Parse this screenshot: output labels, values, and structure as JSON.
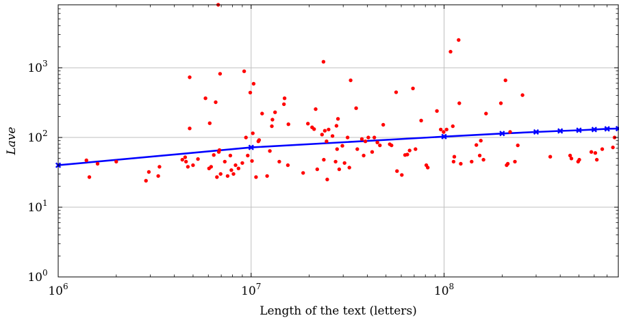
{
  "chart_data": {
    "type": "scatter",
    "xlabel": "Length of the text (letters)",
    "ylabel": "Lave",
    "x_scale": "log",
    "y_scale": "log",
    "xlim": [
      1000000,
      800000000
    ],
    "ylim": [
      1,
      8000
    ],
    "grid": "major",
    "x_ticks": [
      {
        "value": 1000000,
        "base": "10",
        "exp": "6"
      },
      {
        "value": 10000000,
        "base": "10",
        "exp": "7"
      },
      {
        "value": 100000000,
        "base": "10",
        "exp": "8"
      }
    ],
    "y_ticks": [
      {
        "value": 1,
        "base": "10",
        "exp": "0"
      },
      {
        "value": 10,
        "base": "10",
        "exp": "1"
      },
      {
        "value": 100,
        "base": "10",
        "exp": "2"
      },
      {
        "value": 1000,
        "base": "10",
        "exp": "3"
      }
    ],
    "colors": {
      "scatter": "#ff0000",
      "line": "#0000ff"
    },
    "scatter": [
      [
        1400000,
        47
      ],
      [
        1450000,
        27
      ],
      [
        1600000,
        42
      ],
      [
        2000000,
        45
      ],
      [
        2850000,
        24
      ],
      [
        2950000,
        32
      ],
      [
        3300000,
        28
      ],
      [
        3350000,
        38
      ],
      [
        4400000,
        48
      ],
      [
        4550000,
        52
      ],
      [
        4600000,
        45
      ],
      [
        4700000,
        38
      ],
      [
        4800000,
        730
      ],
      [
        4800000,
        135
      ],
      [
        5000000,
        40
      ],
      [
        5300000,
        49
      ],
      [
        5800000,
        365
      ],
      [
        6050000,
        36
      ],
      [
        6100000,
        160
      ],
      [
        6200000,
        38
      ],
      [
        6400000,
        56
      ],
      [
        6550000,
        320
      ],
      [
        6650000,
        27
      ],
      [
        6750000,
        8200
      ],
      [
        6800000,
        62
      ],
      [
        6850000,
        66
      ],
      [
        6900000,
        820
      ],
      [
        6950000,
        30
      ],
      [
        7300000,
        45
      ],
      [
        7550000,
        28
      ],
      [
        7800000,
        55
      ],
      [
        7900000,
        34
      ],
      [
        8100000,
        30
      ],
      [
        8300000,
        40
      ],
      [
        8600000,
        36
      ],
      [
        9000000,
        43
      ],
      [
        9200000,
        890
      ],
      [
        9400000,
        100
      ],
      [
        9600000,
        55
      ],
      [
        9900000,
        440
      ],
      [
        10100000,
        46
      ],
      [
        10200000,
        115
      ],
      [
        10300000,
        590
      ],
      [
        10600000,
        27
      ],
      [
        10900000,
        88
      ],
      [
        11000000,
        92
      ],
      [
        11400000,
        220
      ],
      [
        12100000,
        28
      ],
      [
        12500000,
        64
      ],
      [
        12800000,
        145
      ],
      [
        12900000,
        180
      ],
      [
        13300000,
        230
      ],
      [
        14000000,
        45
      ],
      [
        14800000,
        300
      ],
      [
        14900000,
        365
      ],
      [
        15500000,
        40
      ],
      [
        15600000,
        155
      ],
      [
        18600000,
        31
      ],
      [
        19700000,
        158
      ],
      [
        20700000,
        140
      ],
      [
        21200000,
        132
      ],
      [
        21600000,
        255
      ],
      [
        22000000,
        35
      ],
      [
        23300000,
        110
      ],
      [
        23700000,
        1220
      ],
      [
        23800000,
        48
      ],
      [
        24100000,
        125
      ],
      [
        24600000,
        88
      ],
      [
        24800000,
        25
      ],
      [
        25200000,
        130
      ],
      [
        26400000,
        105
      ],
      [
        27400000,
        45
      ],
      [
        27700000,
        147
      ],
      [
        27900000,
        68
      ],
      [
        28200000,
        185
      ],
      [
        28600000,
        35
      ],
      [
        29700000,
        76
      ],
      [
        30500000,
        43
      ],
      [
        31600000,
        100
      ],
      [
        32300000,
        37
      ],
      [
        32800000,
        660
      ],
      [
        35000000,
        263
      ],
      [
        35500000,
        68
      ],
      [
        37500000,
        95
      ],
      [
        38300000,
        55
      ],
      [
        39100000,
        88
      ],
      [
        40500000,
        100
      ],
      [
        42400000,
        62
      ],
      [
        43500000,
        100
      ],
      [
        45100000,
        85
      ],
      [
        46500000,
        77
      ],
      [
        48400000,
        152
      ],
      [
        52300000,
        80
      ],
      [
        53400000,
        77
      ],
      [
        56400000,
        445
      ],
      [
        57000000,
        33
      ],
      [
        60400000,
        29
      ],
      [
        62800000,
        56
      ],
      [
        64500000,
        57
      ],
      [
        66300000,
        65
      ],
      [
        69000000,
        505
      ],
      [
        71100000,
        68
      ],
      [
        76100000,
        175
      ],
      [
        80900000,
        40
      ],
      [
        82300000,
        37
      ],
      [
        91800000,
        240
      ],
      [
        96100000,
        130
      ],
      [
        99500000,
        120
      ],
      [
        103000000,
        130
      ],
      [
        108000000,
        1700
      ],
      [
        111000000,
        145
      ],
      [
        112000000,
        45
      ],
      [
        113000000,
        53
      ],
      [
        119000000,
        2500
      ],
      [
        120000000,
        310
      ],
      [
        122000000,
        42
      ],
      [
        139000000,
        45
      ],
      [
        147000000,
        78
      ],
      [
        153000000,
        55
      ],
      [
        155000000,
        90
      ],
      [
        160000000,
        48
      ],
      [
        165000000,
        220
      ],
      [
        197000000,
        310
      ],
      [
        208000000,
        660
      ],
      [
        211000000,
        40
      ],
      [
        214000000,
        42
      ],
      [
        220000000,
        120
      ],
      [
        233000000,
        45
      ],
      [
        241000000,
        77
      ],
      [
        255000000,
        405
      ],
      [
        355000000,
        53
      ],
      [
        450000000,
        55
      ],
      [
        457000000,
        50
      ],
      [
        495000000,
        45
      ],
      [
        502000000,
        48
      ],
      [
        580000000,
        62
      ],
      [
        608000000,
        60
      ],
      [
        619000000,
        48
      ],
      [
        660000000,
        68
      ],
      [
        750000000,
        72
      ],
      [
        765000000,
        100
      ]
    ],
    "line": [
      [
        1000000,
        40
      ],
      [
        10000000,
        72
      ],
      [
        100000000,
        103
      ],
      [
        200000000,
        114
      ],
      [
        300000000,
        120
      ],
      [
        400000000,
        124
      ],
      [
        500000000,
        127
      ],
      [
        600000000,
        130
      ],
      [
        700000000,
        133
      ],
      [
        800000000,
        134
      ]
    ]
  }
}
